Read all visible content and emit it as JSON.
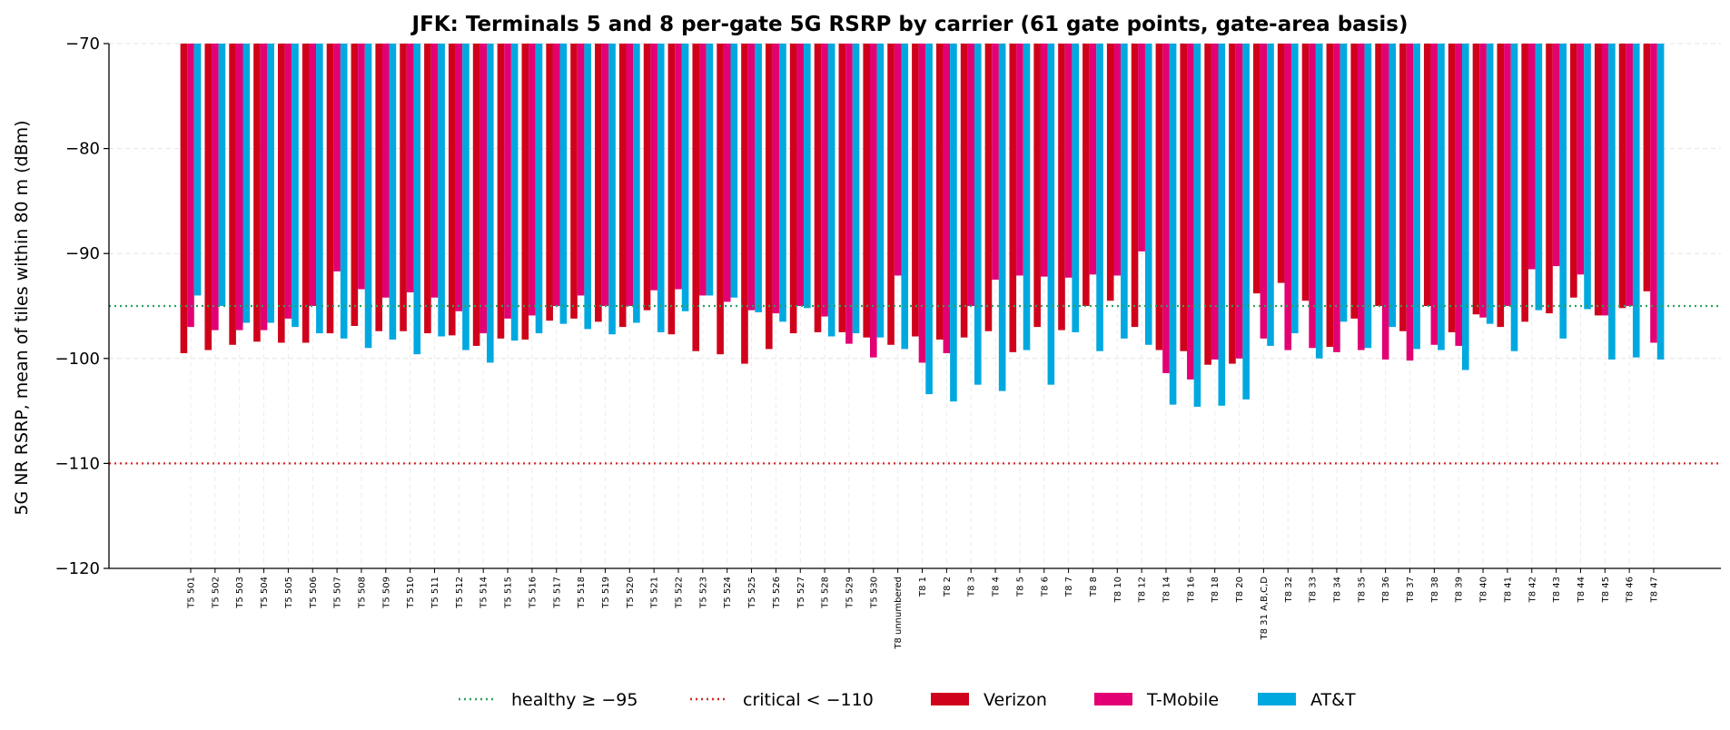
{
  "chart_data": {
    "type": "bar",
    "title": "JFK: Terminals 5 and 8 per-gate 5G RSRP by carrier (61 gate points, gate-area basis)",
    "xlabel": "",
    "ylabel": "5G NR RSRP, mean of tiles within 80 m (dBm)",
    "ylim": [
      -120,
      -70
    ],
    "yticks": [
      -70,
      -80,
      -90,
      -100,
      -110,
      -120
    ],
    "ytick_labels": [
      "−70",
      "−80",
      "−90",
      "−100",
      "−110",
      "−120"
    ],
    "bar_baseline": -70,
    "grid": true,
    "legend_position": "bottom-center",
    "categories": [
      "T5 501",
      "T5 502",
      "T5 503",
      "T5 504",
      "T5 505",
      "T5 506",
      "T5 507",
      "T5 508",
      "T5 509",
      "T5 510",
      "T5 511",
      "T5 512",
      "T5 514",
      "T5 515",
      "T5 516",
      "T5 517",
      "T5 518",
      "T5 519",
      "T5 520",
      "T5 521",
      "T5 522",
      "T5 523",
      "T5 524",
      "T5 525",
      "T5 526",
      "T5 527",
      "T5 528",
      "T5 529",
      "T5 530",
      "T8 unnumbered",
      "T8 1",
      "T8 2",
      "T8 3",
      "T8 4",
      "T8 5",
      "T8 6",
      "T8 7",
      "T8 8",
      "T8 10",
      "T8 12",
      "T8 14",
      "T8 16",
      "T8 18",
      "T8 20",
      "T8 31 A,B,C,D",
      "T8 32",
      "T8 33",
      "T8 34",
      "T8 35",
      "T8 36",
      "T8 37",
      "T8 38",
      "T8 39",
      "T8 40",
      "T8 41",
      "T8 42",
      "T8 43",
      "T8 44",
      "T8 45",
      "T8 46",
      "T8 47"
    ],
    "series": [
      {
        "name": "Verizon",
        "color": "#d0021b",
        "values": [
          -99.5,
          -99.2,
          -98.7,
          -98.4,
          -98.5,
          -98.5,
          -97.6,
          -96.9,
          -97.4,
          -97.4,
          -97.6,
          -97.8,
          -98.8,
          -98.1,
          -98.2,
          -96.4,
          -96.2,
          -96.5,
          -97.0,
          -95.4,
          -97.7,
          -99.3,
          -99.6,
          -100.5,
          -99.1,
          -97.6,
          -97.5,
          -97.5,
          -98.0,
          -98.7,
          -97.9,
          -98.2,
          -98.0,
          -97.4,
          -99.4,
          -97.0,
          -97.3,
          -95.0,
          -94.5,
          -97.0,
          -99.2,
          -99.3,
          -100.6,
          -100.5,
          -93.8,
          -92.8,
          -94.5,
          -98.9,
          -96.2,
          -95.0,
          -97.4,
          -95.0,
          -97.5,
          -95.8,
          -97.0,
          -96.5,
          -95.7,
          -94.2,
          -95.9,
          -95.2,
          -93.6
        ]
      },
      {
        "name": "T-Mobile",
        "color": "#e20074",
        "values": [
          -97.0,
          -97.3,
          -97.3,
          -97.3,
          -96.2,
          -95.0,
          -91.7,
          -93.4,
          -94.2,
          -93.7,
          -94.2,
          -95.5,
          -97.6,
          -96.2,
          -95.9,
          -95.0,
          -94.0,
          -95.0,
          -95.0,
          -93.5,
          -93.4,
          -94.0,
          -94.6,
          -95.4,
          -95.7,
          -95.0,
          -96.0,
          -98.6,
          -99.9,
          -92.1,
          -100.4,
          -99.5,
          -95.0,
          -92.5,
          -92.1,
          -92.2,
          -92.3,
          -92.0,
          -92.1,
          -89.8,
          -101.4,
          -102.0,
          -100.1,
          -100.0,
          -98.1,
          -99.2,
          -99.0,
          -99.4,
          -99.2,
          -100.1,
          -100.2,
          -98.7,
          -98.8,
          -96.1,
          -95.0,
          -91.5,
          -91.2,
          -92.0,
          -95.9,
          -95.0,
          -98.5
        ]
      },
      {
        "name": "AT&T",
        "color": "#00a8e0",
        "values": [
          -94.0,
          -95.0,
          -96.6,
          -96.6,
          -97.0,
          -97.6,
          -98.1,
          -99.0,
          -98.2,
          -99.6,
          -97.9,
          -99.2,
          -100.4,
          -98.3,
          -97.6,
          -96.7,
          -97.2,
          -97.7,
          -96.6,
          -97.5,
          -95.5,
          -94.0,
          -94.2,
          -95.6,
          -96.5,
          -95.2,
          -97.9,
          -97.6,
          -98.0,
          -99.1,
          -103.4,
          -104.1,
          -102.5,
          -103.1,
          -99.2,
          -102.5,
          -97.5,
          -99.3,
          -98.1,
          -98.7,
          -104.4,
          -104.6,
          -104.5,
          -103.9,
          -98.8,
          -97.6,
          -100.0,
          -96.5,
          -99.0,
          -97.0,
          -99.1,
          -99.2,
          -101.1,
          -96.7,
          -99.3,
          -95.4,
          -98.1,
          -95.3,
          -100.1,
          -99.9,
          -100.1
        ]
      }
    ],
    "reference_lines": [
      {
        "name": "healthy ≥ −95",
        "value": -95,
        "color": "#2ca25f",
        "style": "dotted"
      },
      {
        "name": "critical < −110",
        "value": -110,
        "color": "#d62728",
        "style": "dotted"
      }
    ]
  }
}
